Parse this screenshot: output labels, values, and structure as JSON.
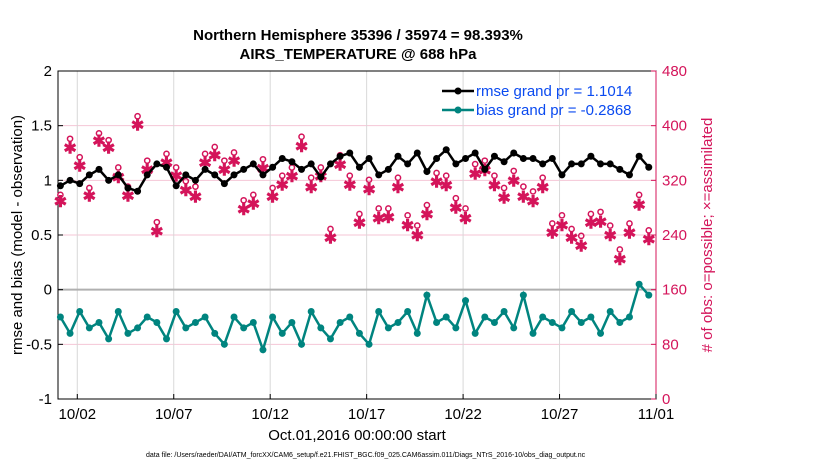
{
  "chart_data": {
    "type": "line",
    "title": "Northern Hemisphere 35396 / 35974 = 98.393%",
    "subtitle": "AIRS_TEMPERATURE @ 688 hPa",
    "xlabel": "Oct.01,2016 00:00:00 start",
    "ylabel": "rmse and bias (model - observation)",
    "y2label": "# of obs: o=possible; ×=assimilated",
    "xlim": [
      0,
      31
    ],
    "ylim": [
      -1,
      2
    ],
    "y2lim": [
      0,
      480
    ],
    "xticks": [
      {
        "v": 1,
        "label": "10/02"
      },
      {
        "v": 6,
        "label": "10/07"
      },
      {
        "v": 11,
        "label": "10/12"
      },
      {
        "v": 16,
        "label": "10/17"
      },
      {
        "v": 21,
        "label": "10/22"
      },
      {
        "v": 26,
        "label": "10/27"
      },
      {
        "v": 31,
        "label": "11/01"
      }
    ],
    "yticks": [
      {
        "v": -1,
        "label": "-1"
      },
      {
        "v": -0.5,
        "label": "-0.5"
      },
      {
        "v": 0,
        "label": "0"
      },
      {
        "v": 0.5,
        "label": "0.5"
      },
      {
        "v": 1,
        "label": "1"
      },
      {
        "v": 1.5,
        "label": "1.5"
      },
      {
        "v": 2,
        "label": "2"
      }
    ],
    "y2ticks": [
      {
        "v": 0,
        "label": "0"
      },
      {
        "v": 80,
        "label": "80"
      },
      {
        "v": 160,
        "label": "160"
      },
      {
        "v": 240,
        "label": "240"
      },
      {
        "v": 320,
        "label": "320"
      },
      {
        "v": 400,
        "label": "400"
      },
      {
        "v": 480,
        "label": "480"
      }
    ],
    "x_start": 0.125,
    "x_step": 0.5,
    "series": [
      {
        "name": "rmse grand pr = 1.1014",
        "color": "#000000",
        "values": [
          0.95,
          1.0,
          0.97,
          1.05,
          1.1,
          1.0,
          1.05,
          0.93,
          0.9,
          1.05,
          1.15,
          1.12,
          0.95,
          1.05,
          1.0,
          1.1,
          1.05,
          0.97,
          1.05,
          1.1,
          1.15,
          1.05,
          1.12,
          1.2,
          1.17,
          1.1,
          1.15,
          1.03,
          1.15,
          1.22,
          1.25,
          1.12,
          1.2,
          1.05,
          1.1,
          1.22,
          1.15,
          1.25,
          1.08,
          1.2,
          1.28,
          1.15,
          1.2,
          1.25,
          1.1,
          1.22,
          1.17,
          1.25,
          1.2,
          1.2,
          1.15,
          1.2,
          1.05,
          1.15,
          1.15,
          1.22,
          1.15,
          1.15,
          1.1,
          1.05,
          1.22,
          1.12
        ]
      },
      {
        "name": "bias grand pr = -0.2868",
        "color": "#00847f",
        "values": [
          -0.25,
          -0.4,
          -0.2,
          -0.35,
          -0.3,
          -0.45,
          -0.2,
          -0.4,
          -0.35,
          -0.25,
          -0.3,
          -0.45,
          -0.2,
          -0.35,
          -0.3,
          -0.25,
          -0.4,
          -0.5,
          -0.25,
          -0.35,
          -0.3,
          -0.55,
          -0.25,
          -0.4,
          -0.3,
          -0.5,
          -0.2,
          -0.35,
          -0.45,
          -0.3,
          -0.25,
          -0.4,
          -0.5,
          -0.2,
          -0.35,
          -0.3,
          -0.2,
          -0.4,
          -0.05,
          -0.3,
          -0.25,
          -0.35,
          -0.1,
          -0.4,
          -0.25,
          -0.3,
          -0.2,
          -0.35,
          -0.05,
          -0.4,
          -0.25,
          -0.3,
          -0.35,
          -0.2,
          -0.3,
          -0.25,
          -0.4,
          -0.2,
          -0.3,
          -0.25,
          0.05,
          -0.05
        ]
      },
      {
        "name": "obs possible",
        "color": "#d4145a",
        "values": [
          290,
          372,
          345,
          300,
          380,
          370,
          330,
          302,
          405,
          340,
          250,
          350,
          330,
          310,
          302,
          350,
          360,
          340,
          352,
          282,
          290,
          342,
          300,
          318,
          330,
          375,
          315,
          330,
          240,
          348,
          318,
          262,
          312,
          270,
          270,
          315,
          260,
          245,
          275,
          322,
          318,
          285,
          270,
          335,
          340,
          318,
          300,
          325,
          302,
          295,
          315,
          248,
          260,
          240,
          230,
          262,
          265,
          245,
          210,
          248,
          290,
          238
        ]
      },
      {
        "name": "obs assimilated",
        "color": "#d4145a",
        "values": [
          290,
          368,
          342,
          298,
          378,
          368,
          325,
          298,
          402,
          336,
          246,
          346,
          327,
          306,
          296,
          346,
          357,
          336,
          349,
          278,
          286,
          338,
          296,
          314,
          326,
          370,
          310,
          326,
          236,
          343,
          314,
          258,
          307,
          265,
          266,
          310,
          255,
          240,
          271,
          318,
          313,
          280,
          265,
          330,
          335,
          313,
          295,
          320,
          296,
          290,
          310,
          244,
          255,
          236,
          225,
          258,
          260,
          240,
          205,
          244,
          285,
          234
        ]
      }
    ]
  },
  "footer": "data file: /Users/raeder/DAI/ATM_forcXX/CAM6_setup/f.e21.FHIST_BGC.f09_025.CAM6assim.011/Diags_NTrS_2016-10/obs_diag_output.nc"
}
